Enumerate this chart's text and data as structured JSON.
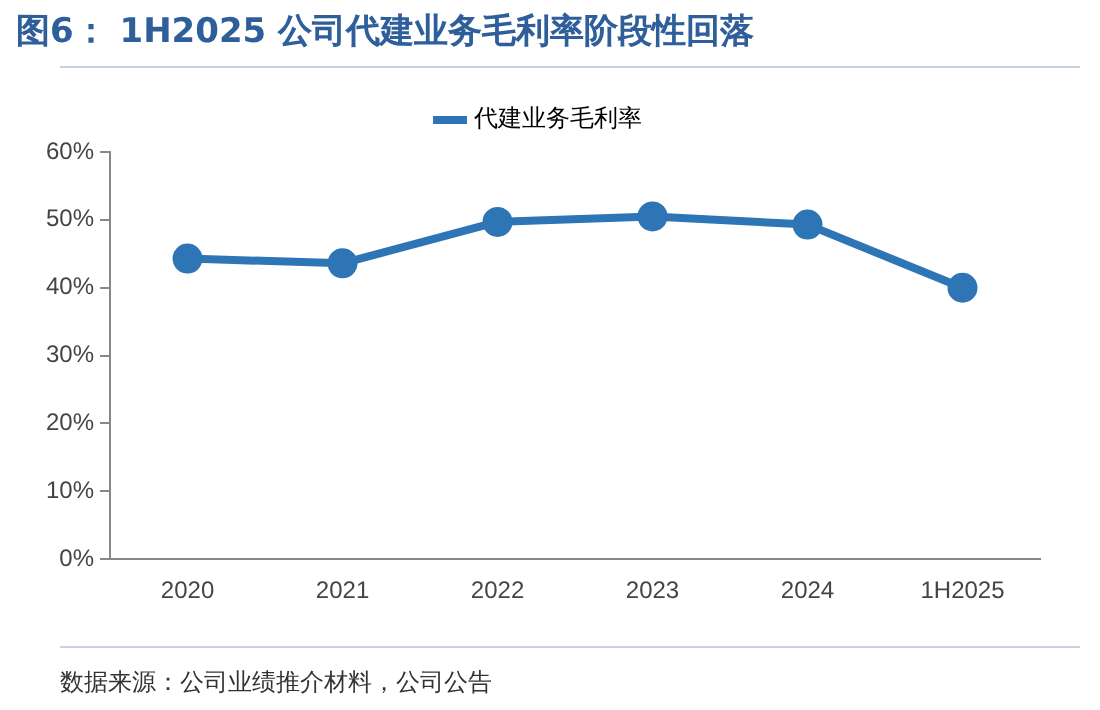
{
  "chart_data": {
    "type": "line",
    "title": "图6： 1H2025 公司代建业务毛利率阶段性回落",
    "categories": [
      "2020",
      "2021",
      "2022",
      "2023",
      "2024",
      "1H2025"
    ],
    "series": [
      {
        "name": "代建业务毛利率",
        "color": "#2e75b6",
        "values": [
          44.3,
          43.6,
          49.7,
          50.5,
          49.3,
          40.0
        ]
      }
    ],
    "ylim": [
      0,
      60
    ],
    "yticks": [
      {
        "value": 0,
        "label": "0%"
      },
      {
        "value": 10,
        "label": "10%"
      },
      {
        "value": 20,
        "label": "20%"
      },
      {
        "value": 30,
        "label": "30%"
      },
      {
        "value": 40,
        "label": "40%"
      },
      {
        "value": 50,
        "label": "50%"
      },
      {
        "value": 60,
        "label": "60%"
      }
    ],
    "legend": "top",
    "grid": false,
    "marker": "circle",
    "line_style": "solid",
    "annotations": [
      "数据来源：公司业绩推介材料，公司公告"
    ]
  }
}
